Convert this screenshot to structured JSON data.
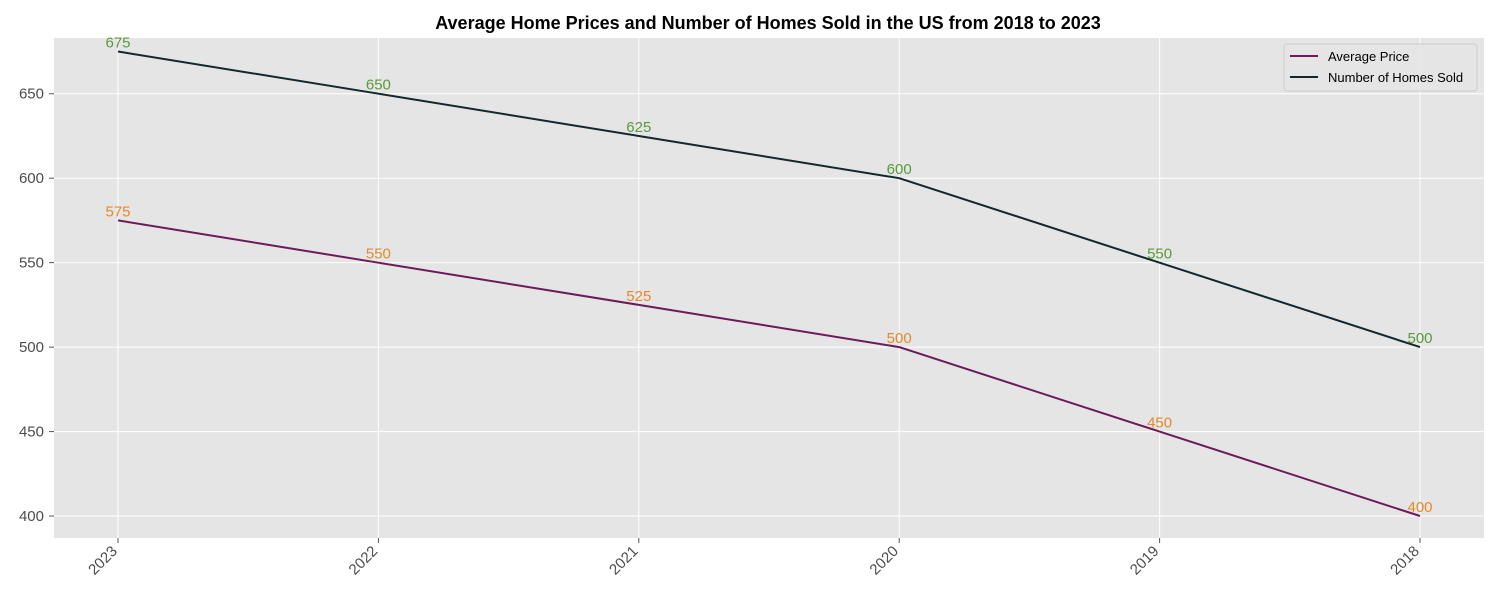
{
  "chart_data": {
    "type": "line",
    "title": "Average Home Prices and Number of Homes Sold in the US from 2018 to 2023",
    "xlabel": "",
    "ylabel": "",
    "categories": [
      "2023",
      "2022",
      "2021",
      "2020",
      "2019",
      "2018"
    ],
    "yticks": [
      400,
      450,
      500,
      550,
      600,
      650
    ],
    "ylim": [
      387,
      683
    ],
    "grid": true,
    "legend_position": "top-right",
    "series": [
      {
        "name": "Average Price",
        "values": [
          575,
          550,
          525,
          500,
          450,
          400
        ],
        "color": "#6c1a5a",
        "label_color": "#e5892b"
      },
      {
        "name": "Number of Homes Sold",
        "values": [
          675,
          650,
          625,
          600,
          550,
          500
        ],
        "color": "#13272e",
        "label_color": "#5a9a3a"
      }
    ],
    "colors": {
      "plot_background": "#e5e5e5",
      "grid": "#ffffff"
    }
  }
}
